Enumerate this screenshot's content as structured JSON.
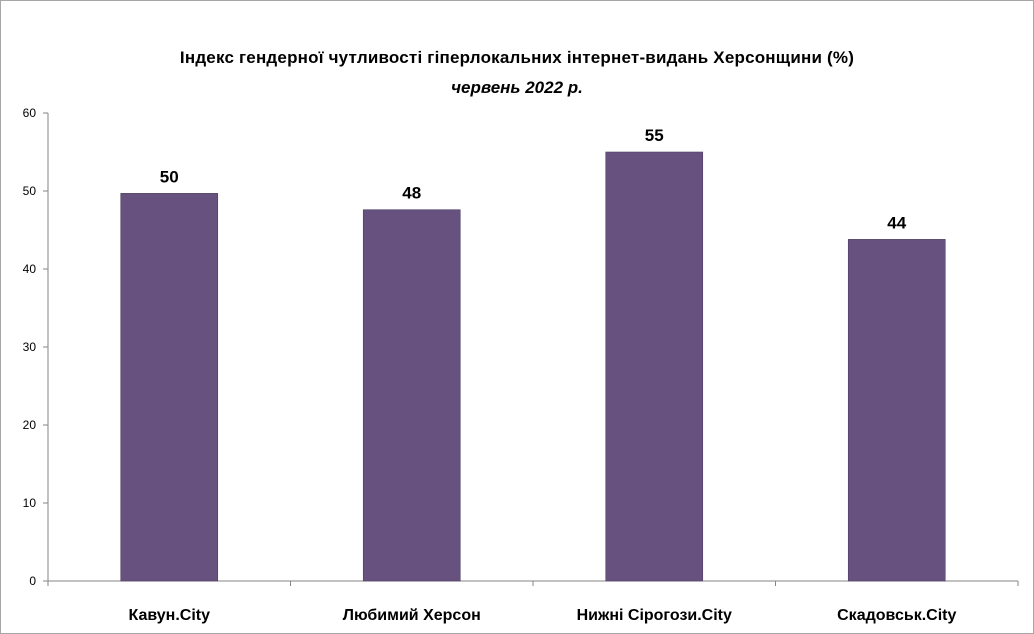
{
  "chart_data": {
    "type": "bar",
    "title": "Індекс гендерної чутливості гіперлокальних інтернет-видань Херсонщини (%)",
    "subtitle": "червень 2022 р.",
    "categories": [
      "Кавун.City",
      "Любимий Херсон",
      "Нижні Сірогози.City",
      "Скадовськ.City"
    ],
    "values": [
      49.7,
      47.6,
      55,
      43.8
    ],
    "data_labels": [
      "50",
      "48",
      "55",
      "44"
    ],
    "ylim": [
      0,
      60
    ],
    "yticks": [
      0,
      10,
      20,
      30,
      40,
      50,
      60
    ],
    "bar_color": "#67527f",
    "grid": false,
    "legend": "none"
  }
}
